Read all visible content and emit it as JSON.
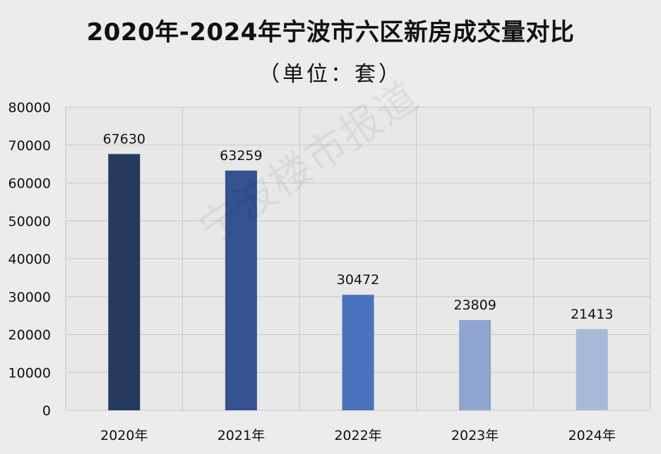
{
  "chart_data": {
    "type": "bar",
    "title": "2020年-2024年宁波市六区新房成交量对比",
    "subtitle": "（单位：套）",
    "categories": [
      "2020年",
      "2021年",
      "2022年",
      "2023年",
      "2024年"
    ],
    "values": [
      67630,
      63259,
      30472,
      23809,
      21413
    ],
    "value_labels": [
      "67630",
      "63259",
      "30472",
      "23809",
      "21413"
    ],
    "bar_colors": [
      "#263a60",
      "#34528f",
      "#4a72bd",
      "#8fa5d0",
      "#a9b9d8"
    ],
    "ylim": [
      0,
      80000
    ],
    "yticks": [
      0,
      10000,
      20000,
      30000,
      40000,
      50000,
      60000,
      70000,
      80000
    ],
    "ytick_labels": [
      "0",
      "10000",
      "20000",
      "30000",
      "40000",
      "50000",
      "60000",
      "70000",
      "80000"
    ],
    "xlabel": "",
    "ylabel": "",
    "grid": true,
    "legend": "none"
  },
  "watermark": "宁波楼市报道",
  "colors": {
    "background": "#ececec",
    "plot_background": "#e8e8e8",
    "grid": "#c8c8c8",
    "text": "#111111"
  }
}
